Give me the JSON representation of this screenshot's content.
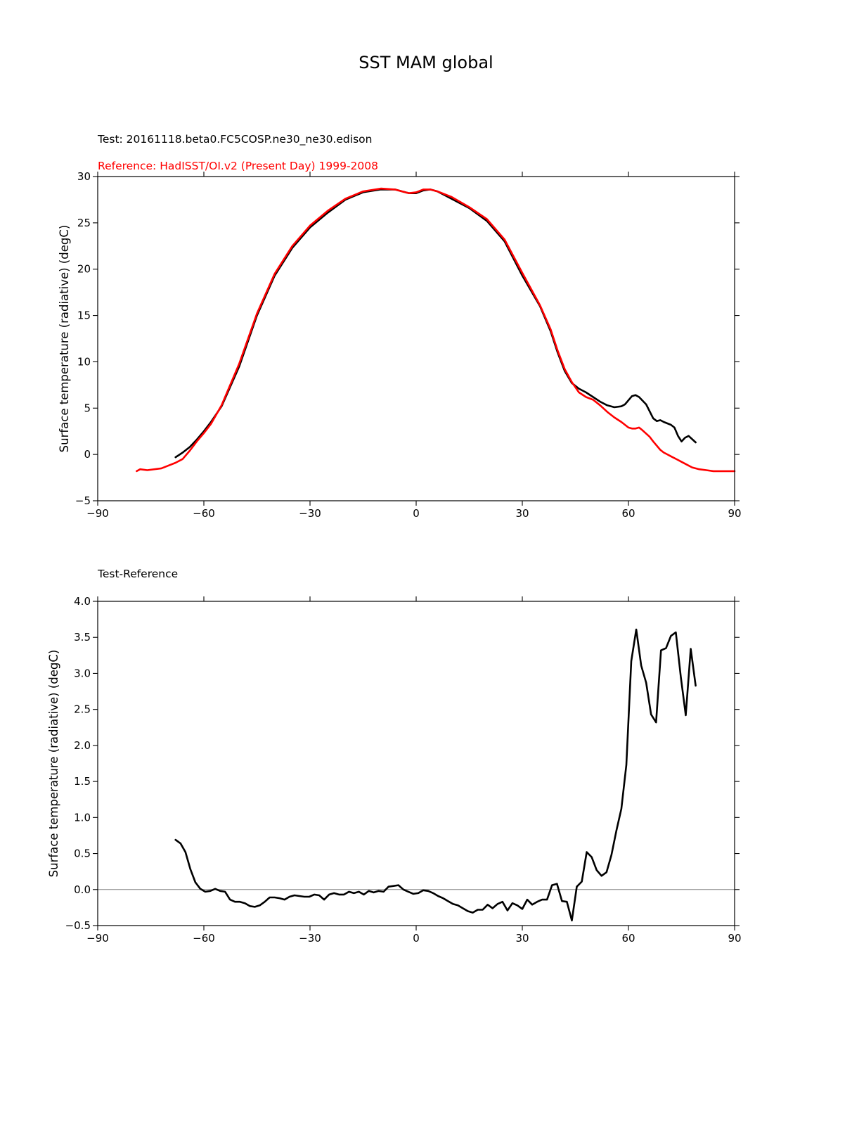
{
  "title": "SST MAM global",
  "chart_data": [
    {
      "type": "line",
      "test_label": "Test: 20161118.beta0.FC5COSP.ne30_ne30.edison",
      "ref_label": "Reference: HadISST/OI.v2 (Present Day) 1999-2008",
      "xlabel": "",
      "ylabel": "Surface temperature (radiative) (degC)",
      "xlim": [
        -90,
        90
      ],
      "ylim": [
        -5,
        30
      ],
      "xticks": [
        "−90",
        "−60",
        "−30",
        "0",
        "30",
        "60",
        "90"
      ],
      "yticks": [
        "−5",
        "0",
        "5",
        "10",
        "15",
        "20",
        "25",
        "30"
      ],
      "colors": {
        "test": "#000000",
        "reference": "#ff0000"
      },
      "series": [
        {
          "color": "#000000",
          "x": [
            -68,
            -66,
            -64,
            -62,
            -60,
            -58,
            -55,
            -50,
            -45,
            -40,
            -35,
            -30,
            -25,
            -20,
            -15,
            -10,
            -6,
            -4,
            -2,
            0,
            2,
            4,
            6,
            10,
            15,
            20,
            25,
            30,
            35,
            38,
            40,
            42,
            44,
            46,
            48,
            50,
            52,
            54,
            56,
            58,
            59,
            61,
            62,
            63,
            65,
            67,
            68,
            69,
            70,
            72,
            73,
            74,
            75,
            76,
            77,
            79
          ],
          "y": [
            -0.3,
            0.2,
            0.8,
            1.6,
            2.5,
            3.5,
            5.2,
            9.5,
            15.0,
            19.3,
            22.3,
            24.5,
            26.1,
            27.5,
            28.3,
            28.6,
            28.6,
            28.4,
            28.2,
            28.2,
            28.5,
            28.6,
            28.4,
            27.6,
            26.6,
            25.2,
            23.0,
            19.3,
            16.0,
            13.3,
            11.0,
            9.0,
            7.7,
            7.1,
            6.7,
            6.2,
            5.7,
            5.3,
            5.1,
            5.2,
            5.4,
            6.3,
            6.4,
            6.2,
            5.4,
            3.9,
            3.6,
            3.7,
            3.5,
            3.2,
            2.9,
            2.0,
            1.4,
            1.8,
            2.0,
            1.3
          ]
        },
        {
          "color": "#ff0000",
          "x": [
            -79,
            -78,
            -76,
            -72,
            -70,
            -68,
            -66,
            -64,
            -62,
            -60,
            -58,
            -55,
            -50,
            -45,
            -40,
            -35,
            -30,
            -25,
            -20,
            -15,
            -10,
            -6,
            -4,
            -2,
            0,
            2,
            4,
            6,
            10,
            15,
            20,
            25,
            30,
            35,
            38,
            40,
            42,
            44,
            46,
            48,
            50,
            52,
            54,
            56,
            58,
            60,
            61,
            62,
            63,
            64,
            66,
            67,
            69,
            70,
            71,
            72,
            74,
            75,
            76,
            78,
            80,
            82,
            84,
            86,
            88,
            90
          ],
          "y": [
            -1.8,
            -1.6,
            -1.7,
            -1.5,
            -1.2,
            -0.9,
            -0.5,
            0.4,
            1.4,
            2.3,
            3.3,
            5.3,
            9.8,
            15.2,
            19.5,
            22.5,
            24.7,
            26.3,
            27.6,
            28.4,
            28.7,
            28.6,
            28.4,
            28.2,
            28.3,
            28.6,
            28.6,
            28.4,
            27.8,
            26.7,
            25.4,
            23.2,
            19.6,
            16.1,
            13.5,
            11.2,
            9.2,
            7.8,
            6.7,
            6.2,
            5.9,
            5.3,
            4.6,
            4.0,
            3.5,
            2.9,
            2.8,
            2.8,
            2.9,
            2.6,
            1.9,
            1.4,
            0.5,
            0.2,
            0.0,
            -0.2,
            -0.6,
            -0.8,
            -1.0,
            -1.4,
            -1.6,
            -1.7,
            -1.8,
            -1.8,
            -1.8,
            -1.8
          ]
        }
      ]
    },
    {
      "type": "line",
      "subtitle": "Test-Reference",
      "xlabel": "",
      "ylabel": "Surface temperature (radiative) (degC)",
      "xlim": [
        -90,
        90
      ],
      "ylim": [
        -0.5,
        4.0
      ],
      "xticks": [
        "−90",
        "−60",
        "−30",
        "0",
        "30",
        "60",
        "90"
      ],
      "yticks": [
        "−0.5",
        "0.0",
        "0.5",
        "1.0",
        "1.5",
        "2.0",
        "2.5",
        "3.0",
        "3.5",
        "4.0"
      ],
      "zero_line": true,
      "colors": {
        "difference": "#000000",
        "zero": "#808080"
      },
      "series": [
        {
          "color": "#000000",
          "x": [
            -68,
            -66.6,
            -65.2,
            -63.8,
            -62.4,
            -61,
            -59.6,
            -58.2,
            -56.8,
            -55.4,
            -54,
            -52.6,
            -51.2,
            -49.8,
            -48.4,
            -47,
            -45.6,
            -44.2,
            -42.8,
            -41.4,
            -40,
            -38.6,
            -37.2,
            -35.8,
            -34.4,
            -33,
            -31.6,
            -30.2,
            -28.8,
            -27.4,
            -26,
            -24.6,
            -23.2,
            -21.8,
            -20.4,
            -19,
            -17.6,
            -16.2,
            -14.8,
            -13.4,
            -12,
            -10.6,
            -9.2,
            -7.8,
            -6.4,
            -5,
            -3.6,
            -2.2,
            -0.8,
            0.6,
            2,
            3.4,
            4.8,
            6.2,
            7.6,
            9,
            10.4,
            11.8,
            13.2,
            14.6,
            16,
            17.4,
            18.8,
            20.2,
            21.6,
            23,
            24.4,
            25.8,
            27.2,
            28.6,
            30,
            31.4,
            32.8,
            34.2,
            35.6,
            37,
            38.4,
            39.8,
            41.2,
            42.6,
            44,
            45.4,
            46.8,
            48.2,
            49.6,
            51,
            52.4,
            53.8,
            55.2,
            56.6,
            58,
            59.4,
            60.8,
            62.2,
            63.6,
            65,
            66.4,
            67.8,
            69.2,
            70.6,
            72,
            73.4,
            74.8,
            76.2,
            77.6,
            79
          ],
          "y": [
            0.69,
            0.64,
            0.52,
            0.28,
            0.1,
            0.01,
            -0.03,
            -0.02,
            0.01,
            -0.02,
            -0.03,
            -0.14,
            -0.17,
            -0.17,
            -0.19,
            -0.23,
            -0.24,
            -0.22,
            -0.17,
            -0.11,
            -0.11,
            -0.12,
            -0.14,
            -0.1,
            -0.08,
            -0.09,
            -0.1,
            -0.1,
            -0.07,
            -0.08,
            -0.14,
            -0.07,
            -0.05,
            -0.07,
            -0.07,
            -0.03,
            -0.05,
            -0.03,
            -0.07,
            -0.02,
            -0.04,
            -0.02,
            -0.03,
            0.04,
            0.05,
            0.06,
            0.0,
            -0.03,
            -0.06,
            -0.05,
            -0.01,
            -0.02,
            -0.05,
            -0.09,
            -0.12,
            -0.16,
            -0.2,
            -0.22,
            -0.26,
            -0.3,
            -0.32,
            -0.28,
            -0.28,
            -0.21,
            -0.26,
            -0.2,
            -0.17,
            -0.29,
            -0.19,
            -0.22,
            -0.27,
            -0.14,
            -0.21,
            -0.17,
            -0.14,
            -0.14,
            0.06,
            0.08,
            -0.16,
            -0.17,
            -0.43,
            0.04,
            0.11,
            0.52,
            0.45,
            0.27,
            0.19,
            0.24,
            0.48,
            0.82,
            1.12,
            1.73,
            3.17,
            3.61,
            3.11,
            2.87,
            2.43,
            2.32,
            3.32,
            3.35,
            3.52,
            3.57,
            2.95,
            2.42,
            3.34,
            2.83
          ]
        }
      ]
    }
  ]
}
